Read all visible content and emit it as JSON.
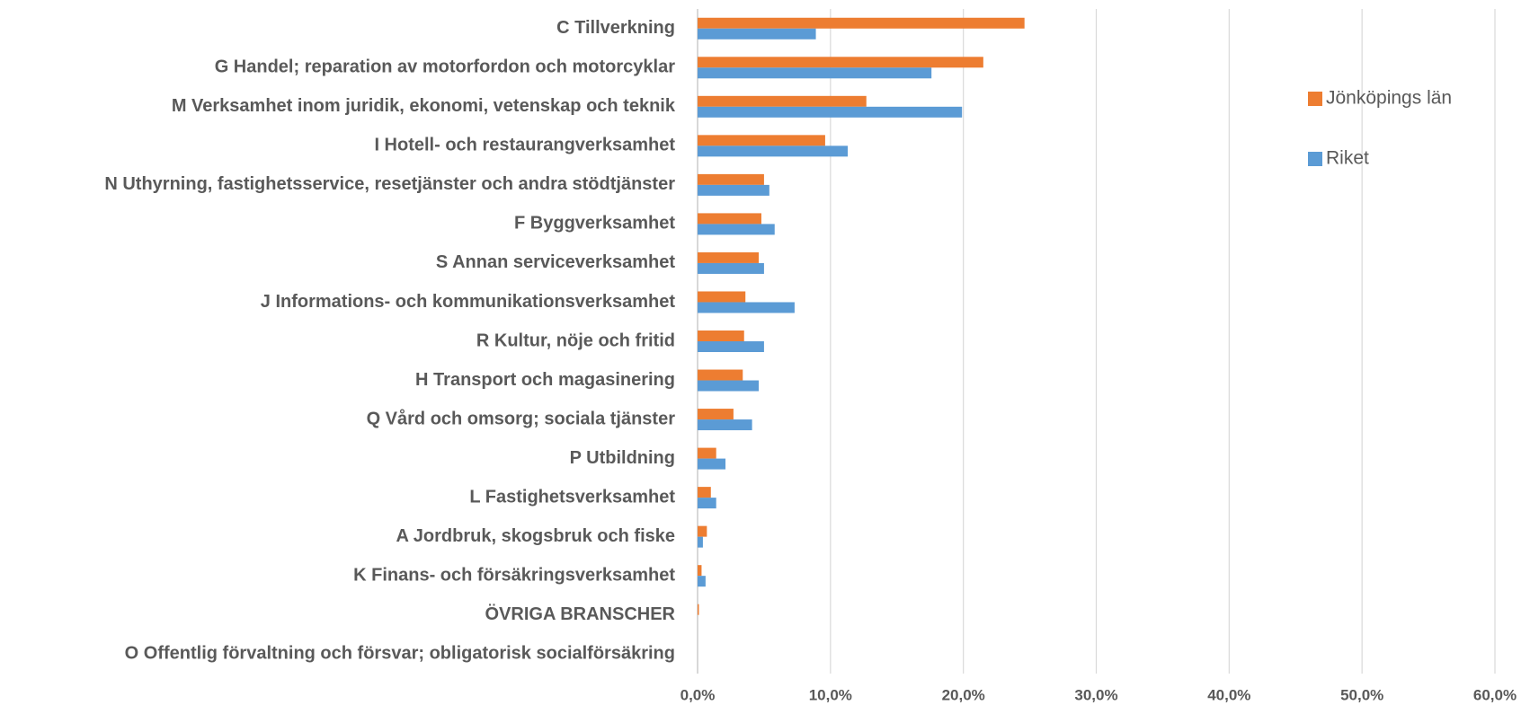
{
  "chart_data": {
    "type": "hbar",
    "categories": [
      "C Tillverkning",
      "G Handel; reparation av motorfordon och motorcyklar",
      "M Verksamhet inom juridik, ekonomi, vetenskap och teknik",
      "I Hotell- och restaurangverksamhet",
      "N Uthyrning, fastighetsservice, resetjänster och andra stödtjänster",
      "F Byggverksamhet",
      "S Annan serviceverksamhet",
      "J Informations- och kommunikationsverksamhet",
      "R Kultur, nöje och fritid",
      "H Transport och magasinering",
      "Q Vård och omsorg; sociala tjänster",
      "P Utbildning",
      "L Fastighetsverksamhet",
      "A Jordbruk, skogsbruk och fiske",
      "K Finans- och försäkringsverksamhet",
      "ÖVRIGA BRANSCHER",
      "O Offentlig förvaltning och försvar; obligatorisk socialförsäkring"
    ],
    "series": [
      {
        "name": "Jönköpings län",
        "color": "#ed7d31",
        "values": [
          24.6,
          21.5,
          12.7,
          9.6,
          5.0,
          4.8,
          4.6,
          3.6,
          3.5,
          3.4,
          2.7,
          1.4,
          1.0,
          0.7,
          0.3,
          0.1,
          0
        ]
      },
      {
        "name": "Riket",
        "color": "#5b9bd5",
        "values": [
          8.9,
          17.6,
          19.9,
          11.3,
          5.4,
          5.8,
          5.0,
          7.3,
          5.0,
          4.6,
          4.1,
          2.1,
          1.4,
          0.4,
          0.6,
          0.0,
          0
        ]
      }
    ],
    "xlim": [
      0,
      60
    ],
    "xticks": [
      {
        "value": 0,
        "label": "0,0%"
      },
      {
        "value": 10,
        "label": "10,0%"
      },
      {
        "value": 20,
        "label": "20,0%"
      },
      {
        "value": 30,
        "label": "30,0%"
      },
      {
        "value": 40,
        "label": "40,0%"
      },
      {
        "value": 50,
        "label": "50,0%"
      },
      {
        "value": 60,
        "label": "60,0%"
      }
    ],
    "grid": true,
    "legend": "right"
  }
}
